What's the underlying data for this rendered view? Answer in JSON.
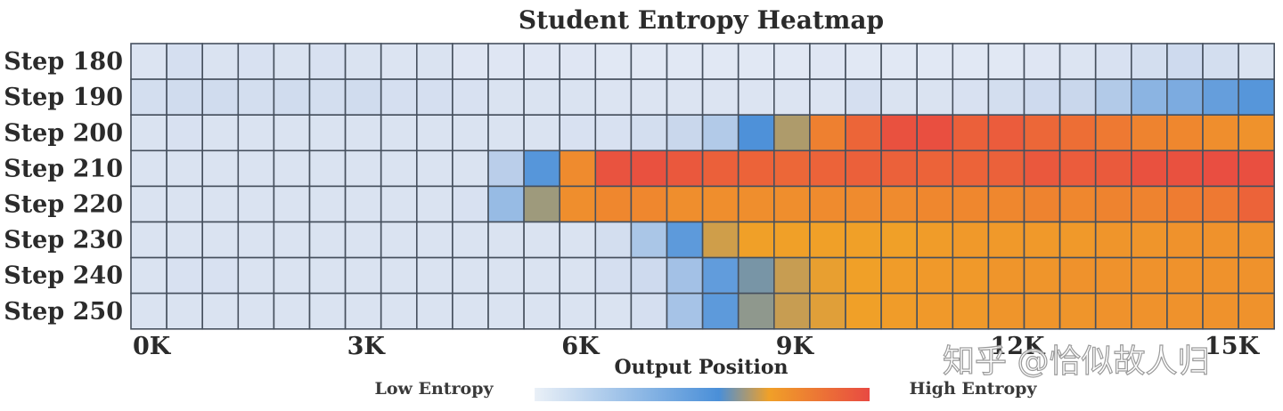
{
  "chart_data": {
    "type": "heatmap",
    "title": "Student Entropy Heatmap",
    "xlabel": "Output Position",
    "ylabel": "",
    "x_tick_labels": [
      "0K",
      "3K",
      "6K",
      "9K",
      "12K",
      "15K"
    ],
    "x_tick_values": [
      0,
      3000,
      6000,
      9000,
      12000,
      15000
    ],
    "x_range": [
      0,
      16000
    ],
    "bin_size": 500,
    "rows": [
      "Step 180",
      "Step 190",
      "Step 200",
      "Step 210",
      "Step 220",
      "Step 230",
      "Step 240",
      "Step 250"
    ],
    "value_range": [
      0,
      1
    ],
    "values": [
      [
        0.04,
        0.07,
        0.05,
        0.06,
        0.05,
        0.06,
        0.05,
        0.04,
        0.05,
        0.03,
        0.03,
        0.03,
        0.03,
        0.02,
        0.02,
        0.02,
        0.02,
        0.02,
        0.02,
        0.03,
        0.02,
        0.02,
        0.02,
        0.02,
        0.02,
        0.03,
        0.04,
        0.06,
        0.08,
        0.1,
        0.08,
        0.05
      ],
      [
        0.08,
        0.09,
        0.09,
        0.08,
        0.09,
        0.08,
        0.09,
        0.07,
        0.07,
        0.06,
        0.05,
        0.05,
        0.05,
        0.04,
        0.04,
        0.04,
        0.04,
        0.04,
        0.04,
        0.04,
        0.07,
        0.05,
        0.05,
        0.06,
        0.08,
        0.1,
        0.12,
        0.18,
        0.28,
        0.32,
        0.38,
        0.42
      ],
      [
        0.05,
        0.06,
        0.05,
        0.05,
        0.05,
        0.05,
        0.05,
        0.05,
        0.05,
        0.05,
        0.05,
        0.05,
        0.06,
        0.06,
        0.08,
        0.12,
        0.18,
        0.44,
        0.58,
        0.75,
        0.85,
        0.96,
        0.97,
        0.88,
        0.9,
        0.84,
        0.8,
        0.77,
        0.74,
        0.73,
        0.71,
        0.7
      ],
      [
        0.05,
        0.05,
        0.05,
        0.05,
        0.05,
        0.05,
        0.05,
        0.05,
        0.05,
        0.05,
        0.16,
        0.42,
        0.72,
        0.95,
        0.96,
        0.92,
        0.88,
        0.86,
        0.84,
        0.86,
        0.88,
        0.87,
        0.86,
        0.86,
        0.87,
        0.92,
        0.9,
        0.91,
        0.96,
        0.96,
        0.98,
        0.97
      ],
      [
        0.05,
        0.05,
        0.05,
        0.05,
        0.05,
        0.05,
        0.05,
        0.05,
        0.05,
        0.06,
        0.25,
        0.56,
        0.71,
        0.73,
        0.73,
        0.71,
        0.71,
        0.71,
        0.71,
        0.72,
        0.72,
        0.72,
        0.73,
        0.73,
        0.73,
        0.74,
        0.73,
        0.74,
        0.74,
        0.76,
        0.77,
        0.86
      ],
      [
        0.05,
        0.05,
        0.05,
        0.05,
        0.05,
        0.05,
        0.05,
        0.05,
        0.05,
        0.05,
        0.05,
        0.05,
        0.05,
        0.08,
        0.2,
        0.4,
        0.62,
        0.66,
        0.66,
        0.66,
        0.66,
        0.66,
        0.67,
        0.68,
        0.68,
        0.68,
        0.68,
        0.69,
        0.69,
        0.7,
        0.7,
        0.7
      ],
      [
        0.05,
        0.06,
        0.06,
        0.05,
        0.05,
        0.05,
        0.05,
        0.05,
        0.05,
        0.05,
        0.05,
        0.05,
        0.05,
        0.07,
        0.1,
        0.22,
        0.39,
        0.51,
        0.61,
        0.65,
        0.66,
        0.67,
        0.68,
        0.68,
        0.69,
        0.69,
        0.7,
        0.7,
        0.7,
        0.7,
        0.7,
        0.7
      ],
      [
        0.05,
        0.05,
        0.05,
        0.05,
        0.05,
        0.05,
        0.05,
        0.05,
        0.05,
        0.05,
        0.05,
        0.05,
        0.05,
        0.05,
        0.07,
        0.21,
        0.4,
        0.54,
        0.61,
        0.64,
        0.66,
        0.67,
        0.68,
        0.68,
        0.69,
        0.69,
        0.69,
        0.7,
        0.7,
        0.7,
        0.7,
        0.7
      ]
    ],
    "colorbar": {
      "low_label": "Low Entropy",
      "high_label": "High Entropy",
      "stops": [
        "#eaf0f7",
        "#4a8fd8",
        "#f0a028",
        "#e84a42"
      ]
    },
    "colors": {
      "grid_line": "#46505e",
      "low": "#e6ebf5",
      "mid_blue": "#4a8fd8",
      "orange": "#f0a028",
      "red": "#e84a42"
    }
  },
  "watermark": "知乎 @恰似故人归"
}
